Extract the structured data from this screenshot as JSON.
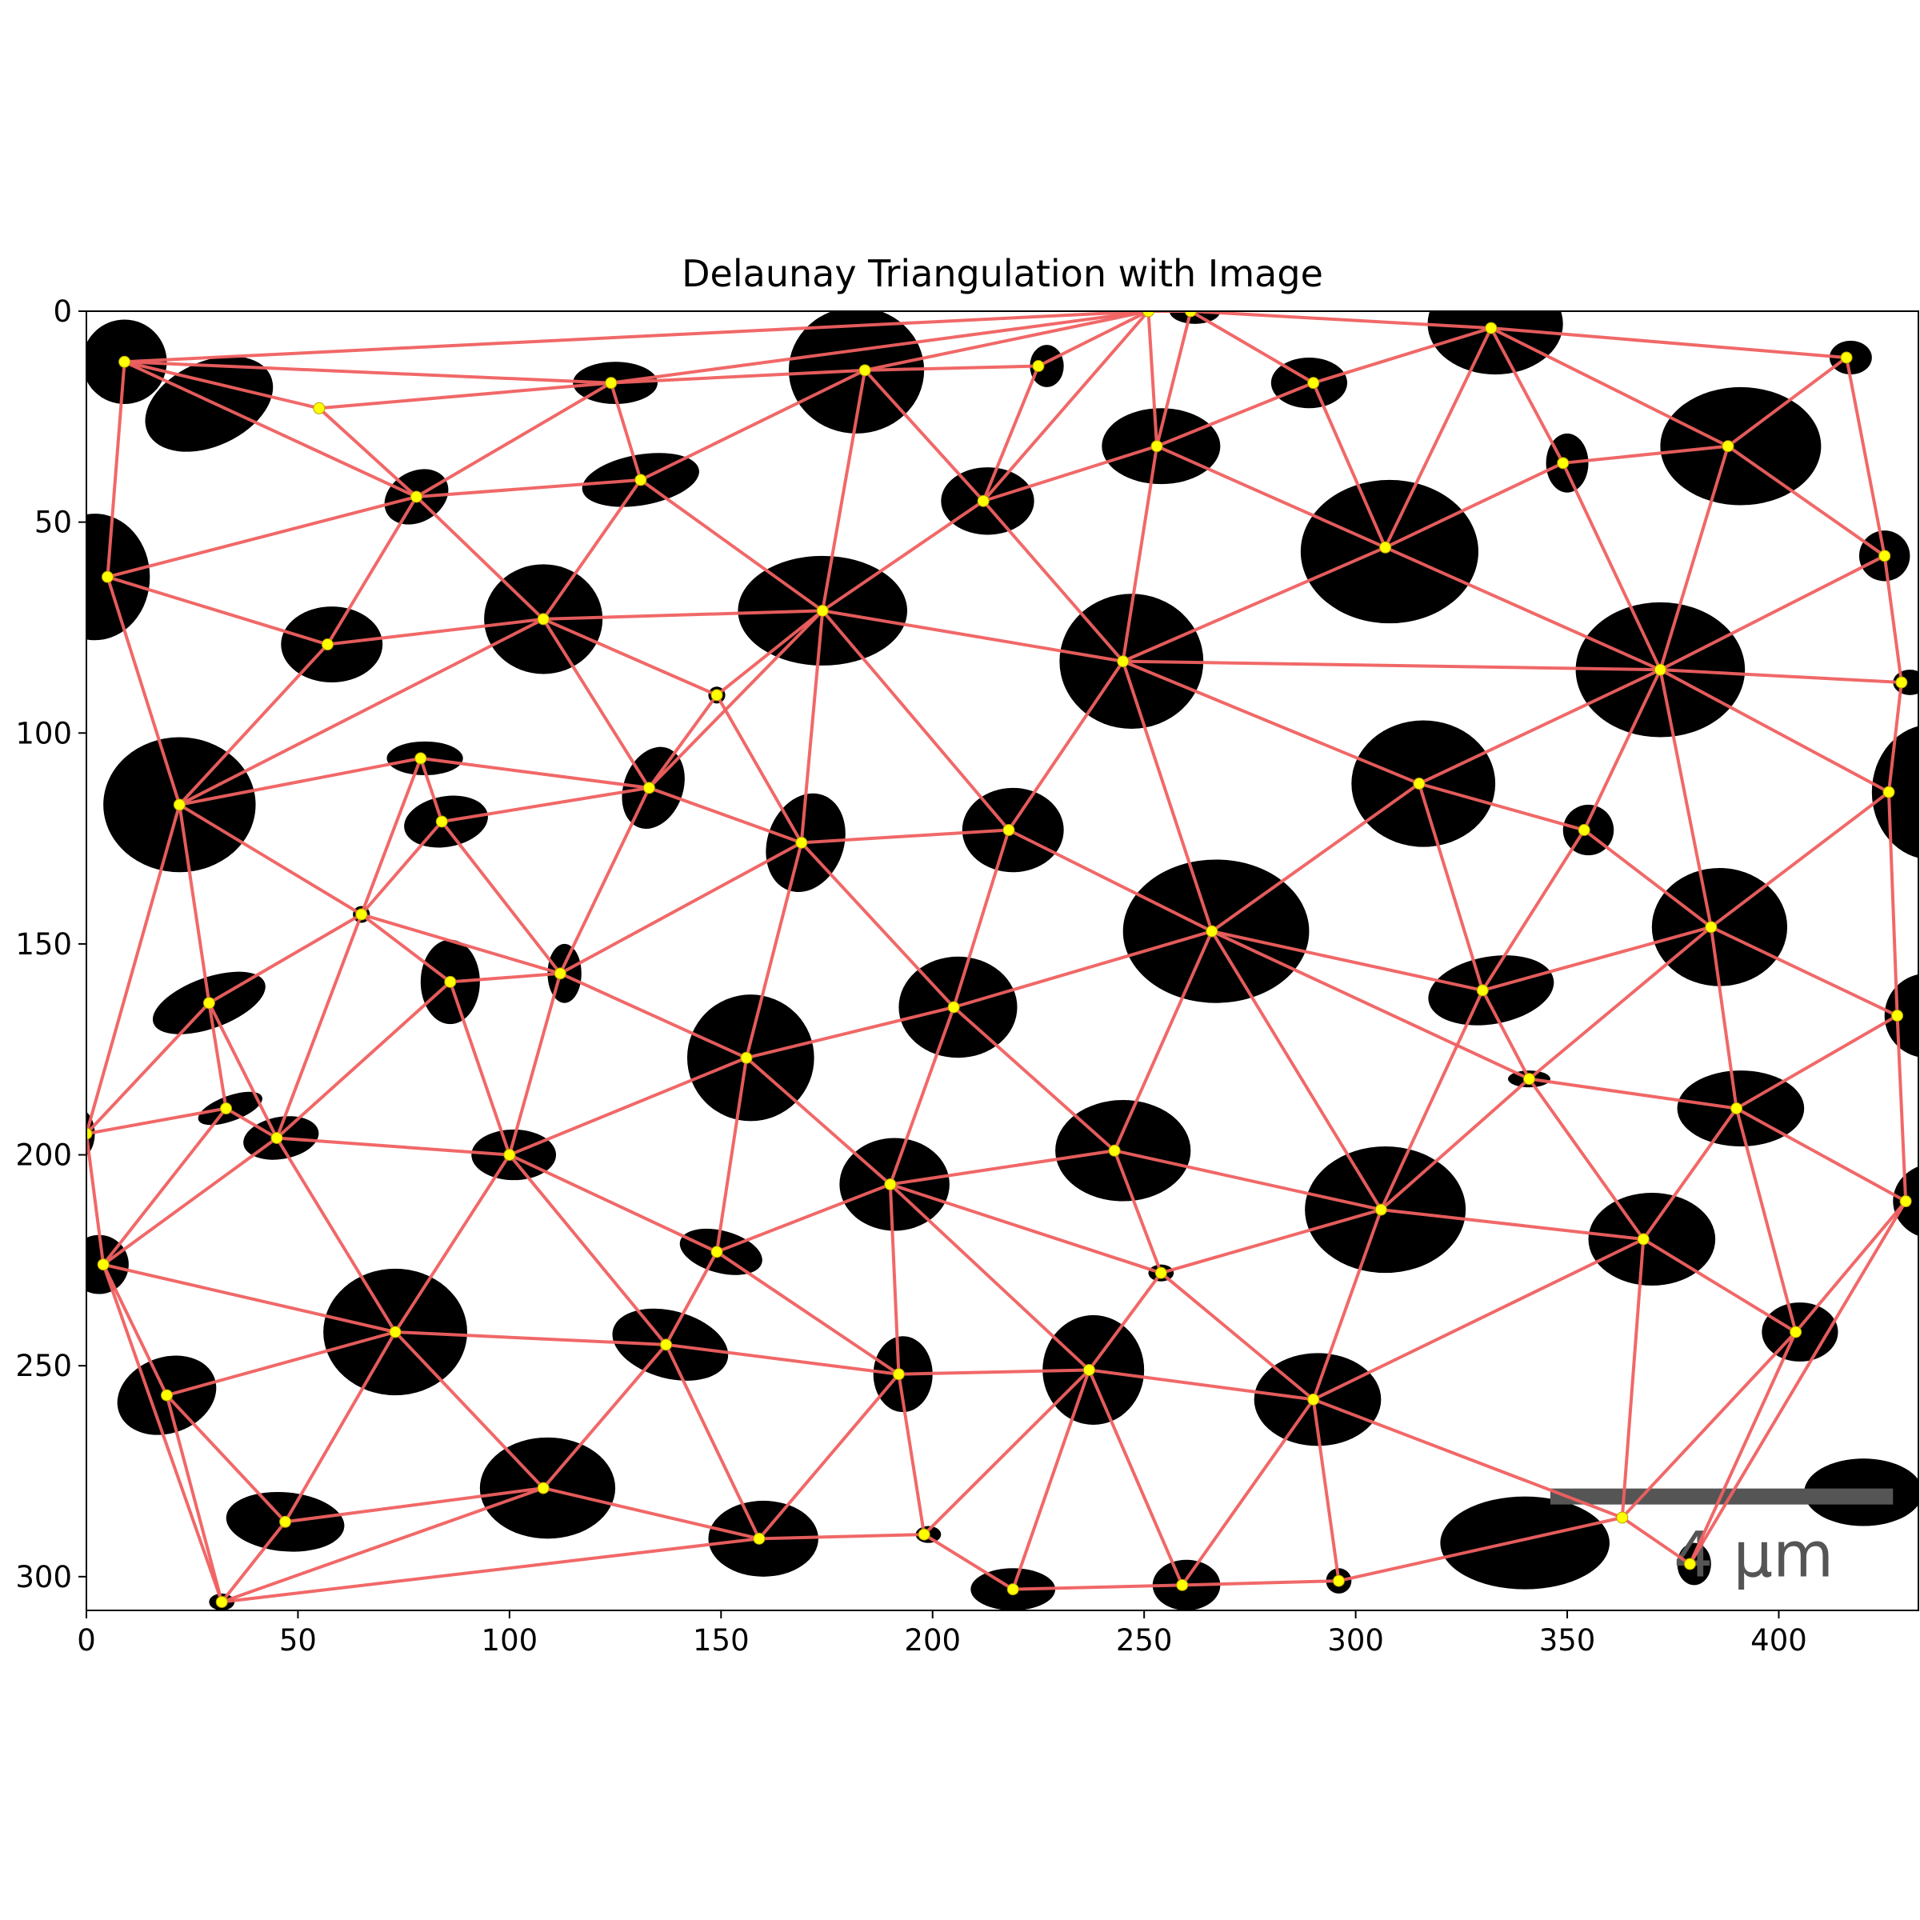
{
  "chart_data": {
    "type": "scatter",
    "title": "Delaunay Triangulation with Image",
    "xlabel": "",
    "ylabel": "",
    "xlim": [
      0,
      433
    ],
    "ylim": [
      308,
      0
    ],
    "y_inverted": true,
    "xticks": [
      0,
      50,
      100,
      150,
      200,
      250,
      300,
      350,
      400
    ],
    "yticks": [
      0,
      50,
      100,
      150,
      200,
      250,
      300
    ],
    "grid": false,
    "scale_bar": {
      "label": "4 µm",
      "x_start": 346,
      "x_end": 427,
      "y": 281
    },
    "colors": {
      "edge": "#f06060",
      "point": "#ffff00",
      "point_outline": "#b8a000",
      "particle": "#000000",
      "scale_bar": "#555555"
    },
    "points": [
      [
        9,
        12
      ],
      [
        55,
        23
      ],
      [
        124,
        17
      ],
      [
        184,
        14
      ],
      [
        225,
        13
      ],
      [
        251,
        0
      ],
      [
        261,
        0
      ],
      [
        290,
        17
      ],
      [
        332,
        4
      ],
      [
        416,
        11
      ],
      [
        5,
        63
      ],
      [
        78,
        44
      ],
      [
        131,
        40
      ],
      [
        212,
        45
      ],
      [
        253,
        32
      ],
      [
        307,
        56
      ],
      [
        349,
        36
      ],
      [
        388,
        32
      ],
      [
        425,
        58
      ],
      [
        57,
        79
      ],
      [
        108,
        73
      ],
      [
        174,
        71
      ],
      [
        149,
        91
      ],
      [
        245,
        83
      ],
      [
        372,
        85
      ],
      [
        429,
        88
      ],
      [
        22,
        117
      ],
      [
        79,
        106
      ],
      [
        84,
        121
      ],
      [
        133,
        113
      ],
      [
        169,
        126
      ],
      [
        218,
        123
      ],
      [
        315,
        112
      ],
      [
        354,
        123
      ],
      [
        426,
        114
      ],
      [
        65,
        143
      ],
      [
        86,
        159
      ],
      [
        112,
        157
      ],
      [
        266,
        147
      ],
      [
        384,
        146
      ],
      [
        29,
        164
      ],
      [
        205,
        165
      ],
      [
        156,
        177
      ],
      [
        330,
        161
      ],
      [
        428,
        167
      ],
      [
        0,
        195
      ],
      [
        33,
        189
      ],
      [
        45,
        196
      ],
      [
        100,
        200
      ],
      [
        243,
        199
      ],
      [
        190,
        207
      ],
      [
        341,
        182
      ],
      [
        390,
        189
      ],
      [
        430,
        211
      ],
      [
        4,
        226
      ],
      [
        73,
        242
      ],
      [
        137,
        245
      ],
      [
        149,
        223
      ],
      [
        254,
        228
      ],
      [
        306,
        213
      ],
      [
        368,
        220
      ],
      [
        404,
        242
      ],
      [
        19,
        257
      ],
      [
        47,
        287
      ],
      [
        108,
        279
      ],
      [
        192,
        252
      ],
      [
        237,
        251
      ],
      [
        290,
        258
      ],
      [
        159,
        291
      ],
      [
        198,
        290
      ],
      [
        32,
        306
      ],
      [
        219,
        303
      ],
      [
        259,
        302
      ],
      [
        296,
        301
      ],
      [
        363,
        286
      ],
      [
        379,
        297
      ]
    ],
    "triangles": [
      [
        0,
        1,
        2
      ],
      [
        0,
        10,
        11
      ],
      [
        0,
        1,
        11
      ],
      [
        0,
        2,
        5
      ],
      [
        1,
        2,
        11
      ],
      [
        2,
        3,
        12
      ],
      [
        2,
        5,
        3
      ],
      [
        3,
        5,
        4
      ],
      [
        4,
        5,
        13
      ],
      [
        5,
        6,
        14
      ],
      [
        5,
        13,
        14
      ],
      [
        6,
        8,
        7
      ],
      [
        7,
        8,
        15
      ],
      [
        6,
        7,
        14
      ],
      [
        7,
        14,
        15
      ],
      [
        8,
        9,
        17
      ],
      [
        8,
        15,
        16
      ],
      [
        8,
        16,
        17
      ],
      [
        9,
        17,
        18
      ],
      [
        10,
        11,
        19
      ],
      [
        10,
        19,
        26
      ],
      [
        11,
        12,
        20
      ],
      [
        11,
        19,
        20
      ],
      [
        12,
        20,
        21
      ],
      [
        12,
        3,
        21
      ],
      [
        3,
        13,
        21
      ],
      [
        13,
        14,
        23
      ],
      [
        13,
        21,
        23
      ],
      [
        14,
        15,
        23
      ],
      [
        15,
        16,
        24
      ],
      [
        16,
        17,
        24
      ],
      [
        17,
        18,
        24
      ],
      [
        18,
        24,
        25
      ],
      [
        19,
        20,
        26
      ],
      [
        20,
        21,
        29
      ],
      [
        20,
        22,
        29
      ],
      [
        21,
        22,
        30
      ],
      [
        21,
        23,
        31
      ],
      [
        21,
        30,
        31
      ],
      [
        23,
        24,
        32
      ],
      [
        23,
        31,
        38
      ],
      [
        23,
        32,
        38
      ],
      [
        24,
        32,
        33
      ],
      [
        24,
        25,
        34
      ],
      [
        24,
        33,
        39
      ],
      [
        24,
        34,
        39
      ],
      [
        26,
        27,
        35
      ],
      [
        26,
        35,
        40
      ],
      [
        27,
        28,
        29
      ],
      [
        27,
        28,
        35
      ],
      [
        28,
        29,
        37
      ],
      [
        29,
        30,
        37
      ],
      [
        30,
        31,
        41
      ],
      [
        30,
        41,
        42
      ],
      [
        32,
        33,
        43
      ],
      [
        32,
        38,
        43
      ],
      [
        33,
        39,
        43
      ],
      [
        34,
        39,
        44
      ],
      [
        35,
        36,
        37
      ],
      [
        35,
        36,
        47
      ],
      [
        26,
        40,
        45
      ],
      [
        40,
        45,
        46
      ],
      [
        40,
        46,
        47
      ],
      [
        35,
        40,
        47
      ],
      [
        36,
        37,
        48
      ],
      [
        36,
        47,
        48
      ],
      [
        37,
        42,
        48
      ],
      [
        38,
        41,
        49
      ],
      [
        38,
        43,
        51
      ],
      [
        38,
        49,
        59
      ],
      [
        41,
        42,
        50
      ],
      [
        41,
        49,
        50
      ],
      [
        42,
        48,
        57
      ],
      [
        43,
        51,
        59
      ],
      [
        39,
        43,
        51
      ],
      [
        39,
        44,
        52
      ],
      [
        39,
        51,
        52
      ],
      [
        44,
        52,
        53
      ],
      [
        45,
        46,
        54
      ],
      [
        46,
        47,
        54
      ],
      [
        47,
        48,
        55
      ],
      [
        47,
        54,
        55
      ],
      [
        48,
        55,
        56
      ],
      [
        48,
        56,
        57
      ],
      [
        49,
        50,
        58
      ],
      [
        49,
        58,
        59
      ],
      [
        51,
        52,
        60
      ],
      [
        51,
        59,
        60
      ],
      [
        52,
        53,
        61
      ],
      [
        52,
        60,
        61
      ],
      [
        54,
        55,
        62
      ],
      [
        54,
        62,
        70
      ],
      [
        55,
        62,
        63
      ],
      [
        55,
        63,
        64
      ],
      [
        55,
        56,
        64
      ],
      [
        56,
        57,
        65
      ],
      [
        56,
        64,
        68
      ],
      [
        56,
        65,
        68
      ],
      [
        57,
        50,
        65
      ],
      [
        50,
        58,
        66
      ],
      [
        50,
        65,
        66
      ],
      [
        58,
        59,
        67
      ],
      [
        58,
        66,
        67
      ],
      [
        59,
        60,
        67
      ],
      [
        60,
        61,
        74
      ],
      [
        60,
        67,
        74
      ],
      [
        62,
        63,
        70
      ],
      [
        63,
        64,
        70
      ],
      [
        64,
        68,
        70
      ],
      [
        65,
        68,
        69
      ],
      [
        65,
        66,
        69
      ],
      [
        66,
        69,
        71
      ],
      [
        66,
        71,
        72
      ],
      [
        66,
        67,
        72
      ],
      [
        67,
        72,
        73
      ],
      [
        67,
        73,
        74
      ],
      [
        74,
        75,
        61
      ],
      [
        61,
        53,
        75
      ]
    ],
    "particles": [
      [
        9,
        12,
        10,
        10,
        0
      ],
      [
        29,
        22,
        16,
        10,
        -25
      ],
      [
        125,
        17,
        10,
        5,
        0
      ],
      [
        182,
        14,
        16,
        15,
        0
      ],
      [
        227,
        13,
        4,
        5,
        0
      ],
      [
        262,
        0,
        6,
        3,
        0
      ],
      [
        289,
        17,
        9,
        6,
        0
      ],
      [
        333,
        3,
        16,
        12,
        0
      ],
      [
        417,
        11,
        5,
        4,
        0
      ],
      [
        2,
        63,
        13,
        15,
        0
      ],
      [
        78,
        44,
        8,
        6,
        -30
      ],
      [
        131,
        40,
        14,
        6,
        -10
      ],
      [
        213,
        45,
        11,
        8,
        0
      ],
      [
        254,
        32,
        14,
        9,
        0
      ],
      [
        308,
        57,
        21,
        17,
        0
      ],
      [
        350,
        36,
        5,
        7,
        0
      ],
      [
        391,
        32,
        19,
        14,
        0
      ],
      [
        425,
        58,
        6,
        6,
        0
      ],
      [
        58,
        79,
        12,
        9,
        0
      ],
      [
        108,
        73,
        14,
        13,
        0
      ],
      [
        174,
        71,
        20,
        13,
        0
      ],
      [
        149,
        91,
        2,
        2,
        0
      ],
      [
        247,
        83,
        17,
        16,
        0
      ],
      [
        372,
        85,
        20,
        16,
        0
      ],
      [
        431,
        88,
        4,
        3,
        0
      ],
      [
        22,
        117,
        18,
        16,
        0
      ],
      [
        80,
        106,
        9,
        4,
        0
      ],
      [
        85,
        121,
        10,
        6,
        -10
      ],
      [
        134,
        113,
        7,
        10,
        20
      ],
      [
        170,
        126,
        9,
        12,
        20
      ],
      [
        219,
        123,
        12,
        10,
        0
      ],
      [
        316,
        112,
        17,
        15,
        0
      ],
      [
        355,
        123,
        6,
        6,
        0
      ],
      [
        436,
        114,
        14,
        16,
        0
      ],
      [
        65,
        143,
        2,
        2,
        0
      ],
      [
        86,
        159,
        7,
        10,
        0
      ],
      [
        113,
        157,
        4,
        7,
        0
      ],
      [
        267,
        147,
        22,
        17,
        0
      ],
      [
        386,
        146,
        16,
        14,
        0
      ],
      [
        29,
        164,
        14,
        6,
        -20
      ],
      [
        206,
        165,
        14,
        12,
        0
      ],
      [
        157,
        177,
        15,
        15,
        0
      ],
      [
        332,
        161,
        15,
        8,
        -10
      ],
      [
        435,
        167,
        10,
        10,
        0
      ],
      [
        -2,
        195,
        4,
        6,
        0
      ],
      [
        34,
        189,
        8,
        3,
        -20
      ],
      [
        46,
        196,
        9,
        5,
        -10
      ],
      [
        101,
        200,
        10,
        6,
        0
      ],
      [
        245,
        199,
        16,
        12,
        0
      ],
      [
        191,
        207,
        13,
        11,
        0
      ],
      [
        341,
        182,
        5,
        2,
        0
      ],
      [
        391,
        189,
        15,
        9,
        0
      ],
      [
        437,
        211,
        10,
        9,
        0
      ],
      [
        3,
        226,
        7,
        7,
        0
      ],
      [
        73,
        242,
        17,
        15,
        0
      ],
      [
        138,
        245,
        14,
        8,
        15
      ],
      [
        150,
        223,
        10,
        5,
        15
      ],
      [
        254,
        228,
        3,
        2,
        0
      ],
      [
        307,
        213,
        19,
        15,
        0
      ],
      [
        370,
        220,
        15,
        11,
        0
      ],
      [
        405,
        242,
        9,
        7,
        0
      ],
      [
        19,
        257,
        12,
        9,
        -20
      ],
      [
        47,
        287,
        14,
        7,
        5
      ],
      [
        109,
        279,
        16,
        12,
        0
      ],
      [
        193,
        252,
        7,
        9,
        0
      ],
      [
        238,
        251,
        12,
        13,
        0
      ],
      [
        291,
        258,
        15,
        11,
        0
      ],
      [
        160,
        291,
        13,
        9,
        0
      ],
      [
        199,
        290,
        3,
        2,
        0
      ],
      [
        32,
        306,
        3,
        2,
        0
      ],
      [
        219,
        303,
        10,
        5,
        0
      ],
      [
        260,
        302,
        8,
        6,
        0
      ],
      [
        296,
        301,
        3,
        3,
        0
      ],
      [
        340,
        292,
        20,
        11,
        0
      ],
      [
        380,
        297,
        4,
        5,
        0
      ],
      [
        420,
        280,
        14,
        8,
        0
      ]
    ]
  }
}
